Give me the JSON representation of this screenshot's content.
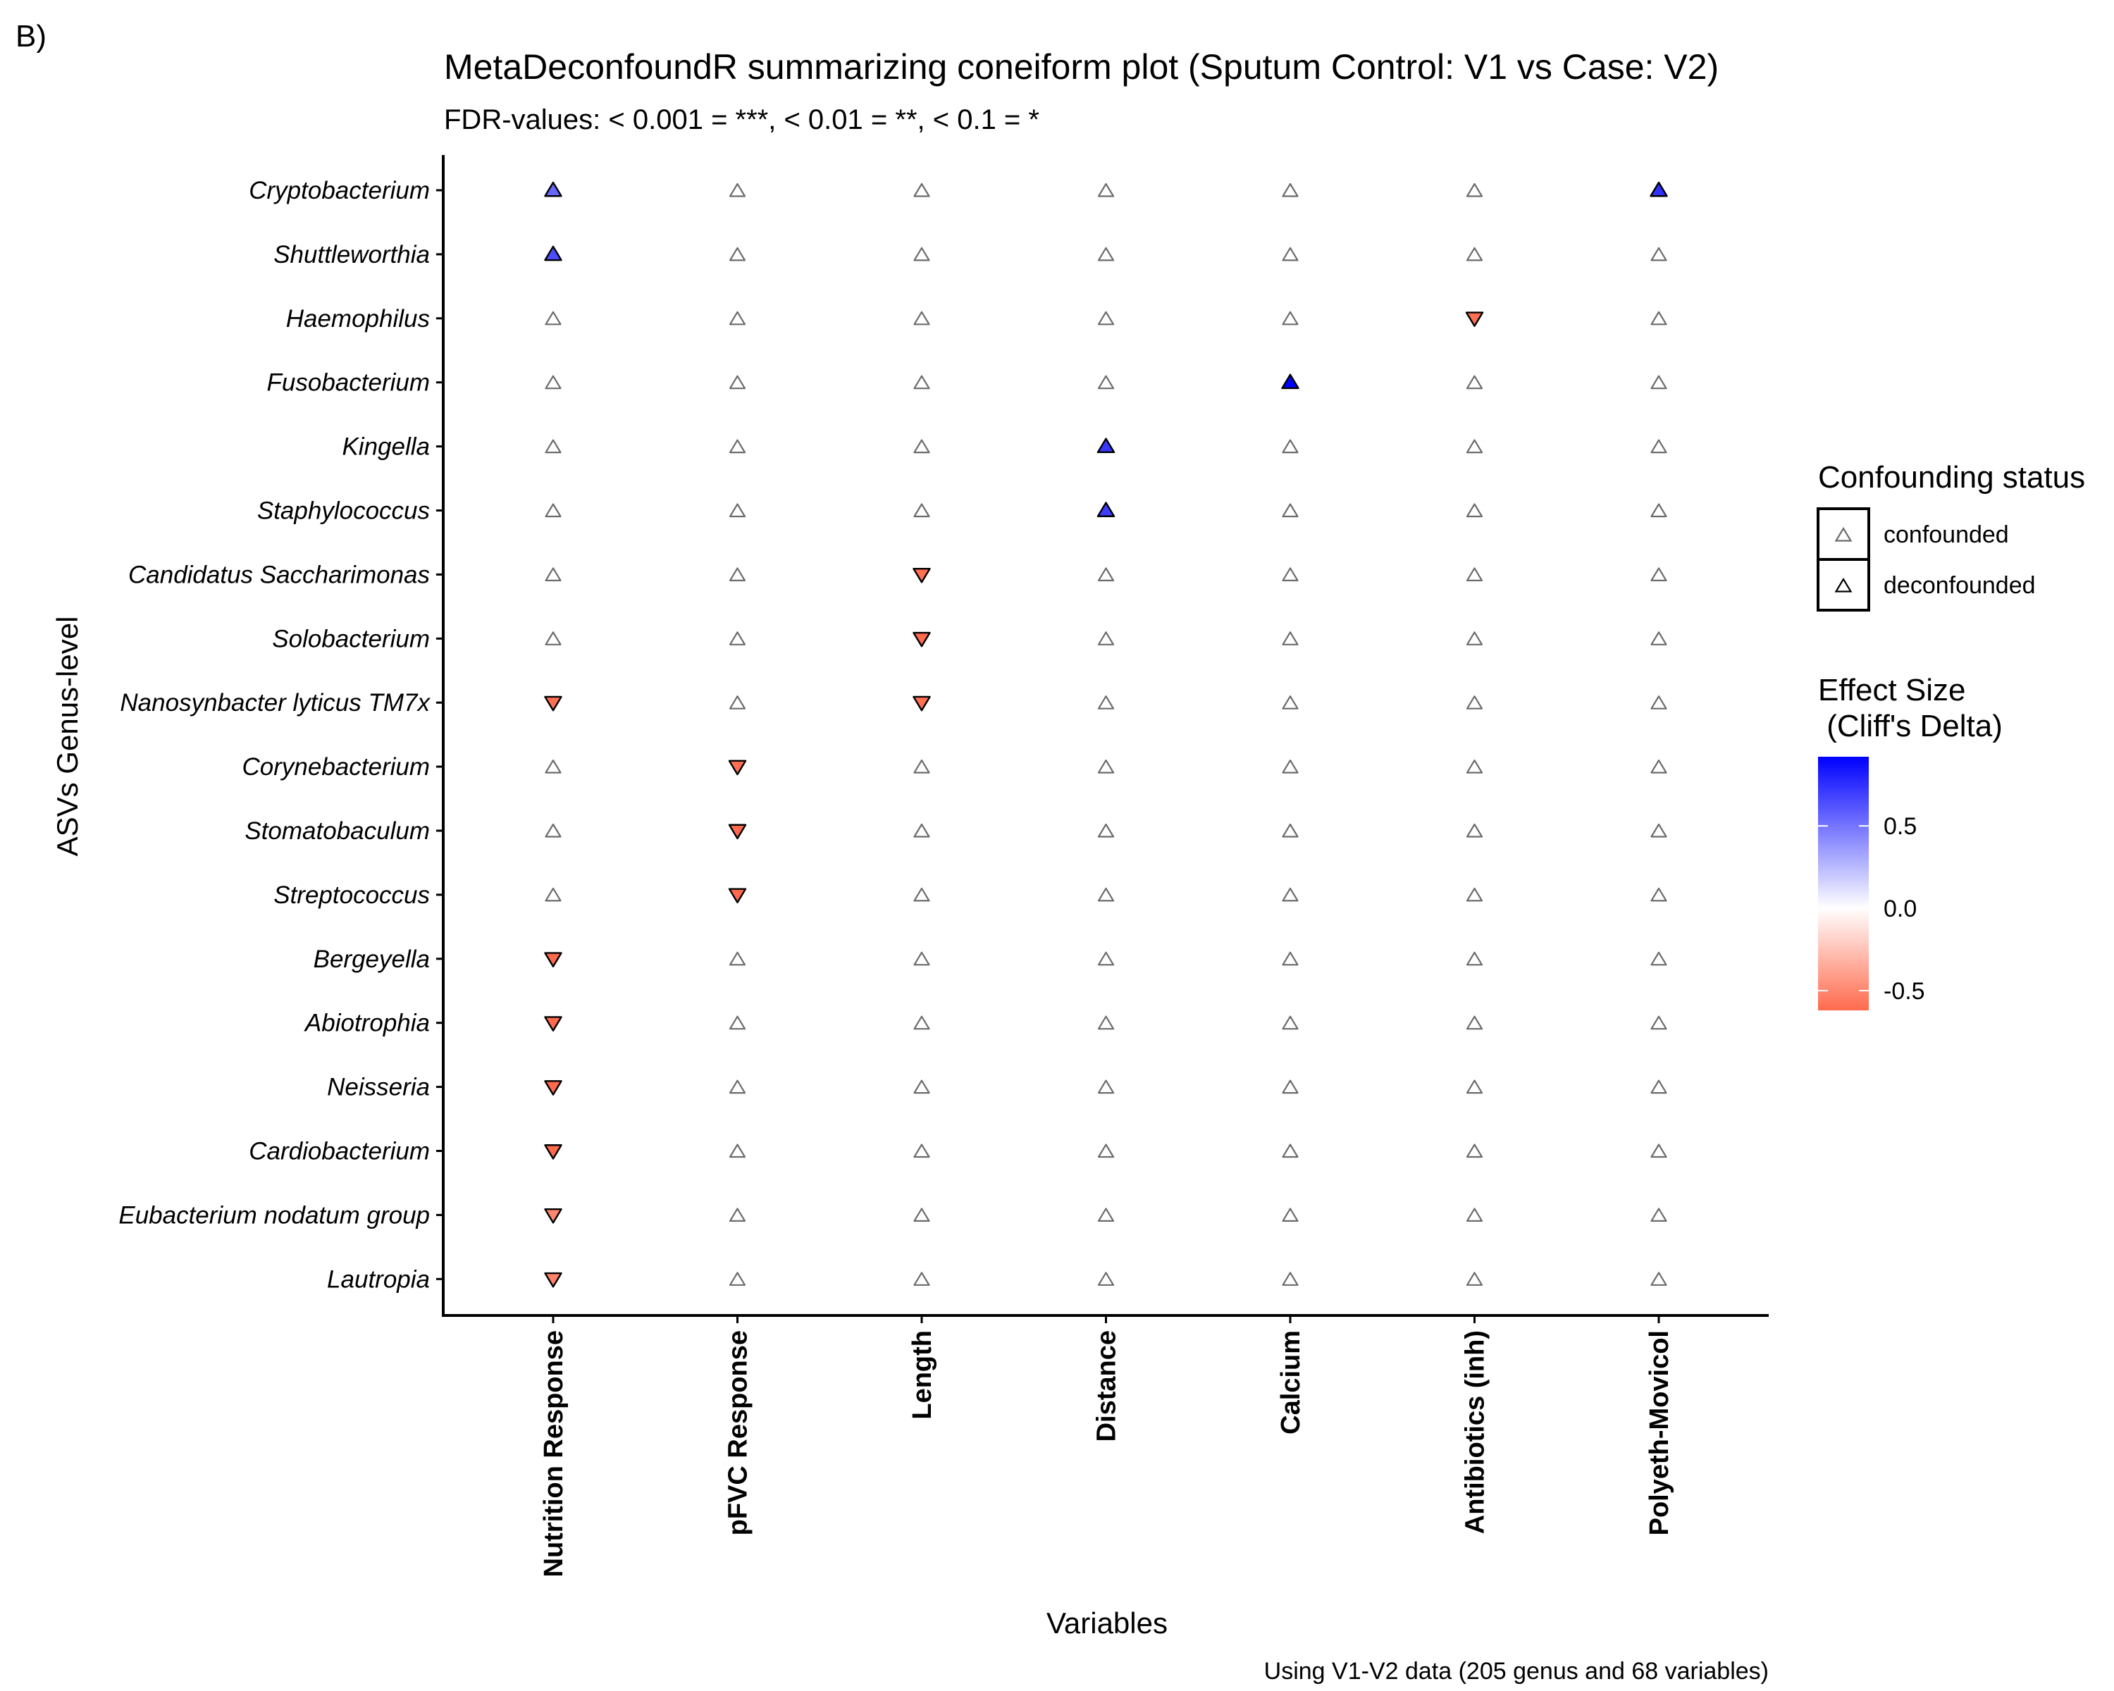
{
  "panel_label": "B)",
  "chart_data": {
    "type": "scatter",
    "title": "MetaDeconfoundR summarizing coneiform plot (Sputum Control: V1 vs Case: V2)",
    "subtitle": "FDR-values: < 0.001 = ***, < 0.01 = **, < 0.1 = *",
    "xlabel": "Variables",
    "ylabel": "ASVs Genus-level",
    "caption": "Using V1-V2 data (205 genus and 68 variables)",
    "grid": false,
    "x_categories": [
      "Nutrition Response",
      "pFVC Response",
      "Length",
      "Distance",
      "Calcium",
      "Antibiotics (inh)",
      "Polyeth-Movicol"
    ],
    "y_categories": [
      "Cryptobacterium",
      "Shuttleworthia",
      "Haemophilus",
      "Fusobacterium",
      "Kingella",
      "Staphylococcus",
      "Candidatus Saccharimonas",
      "Solobacterium",
      "Nanosynbacter lyticus TM7x",
      "Corynebacterium",
      "Stomatobaculum",
      "Streptococcus",
      "Bergeyella",
      "Abiotrophia",
      "Neisseria",
      "Cardiobacterium",
      "Eubacterium nodatum group",
      "Lautropia"
    ],
    "points": [
      {
        "genus": "Cryptobacterium",
        "variable": "Nutrition Response",
        "effect": 0.55,
        "status": "deconfounded"
      },
      {
        "genus": "Cryptobacterium",
        "variable": "Polyeth-Movicol",
        "effect": 0.75,
        "status": "deconfounded"
      },
      {
        "genus": "Shuttleworthia",
        "variable": "Nutrition Response",
        "effect": 0.65,
        "status": "deconfounded"
      },
      {
        "genus": "Haemophilus",
        "variable": "Antibiotics (inh)",
        "effect": -0.6,
        "status": "deconfounded"
      },
      {
        "genus": "Fusobacterium",
        "variable": "Calcium",
        "effect": 0.92,
        "status": "deconfounded"
      },
      {
        "genus": "Kingella",
        "variable": "Distance",
        "effect": 0.72,
        "status": "deconfounded"
      },
      {
        "genus": "Staphylococcus",
        "variable": "Distance",
        "effect": 0.7,
        "status": "deconfounded"
      },
      {
        "genus": "Candidatus Saccharimonas",
        "variable": "Length",
        "effect": -0.6,
        "status": "deconfounded"
      },
      {
        "genus": "Solobacterium",
        "variable": "Length",
        "effect": -0.62,
        "status": "deconfounded"
      },
      {
        "genus": "Nanosynbacter lyticus TM7x",
        "variable": "Nutrition Response",
        "effect": -0.6,
        "status": "deconfounded"
      },
      {
        "genus": "Nanosynbacter lyticus TM7x",
        "variable": "Length",
        "effect": -0.6,
        "status": "deconfounded"
      },
      {
        "genus": "Corynebacterium",
        "variable": "pFVC Response",
        "effect": -0.6,
        "status": "deconfounded"
      },
      {
        "genus": "Stomatobaculum",
        "variable": "pFVC Response",
        "effect": -0.62,
        "status": "deconfounded"
      },
      {
        "genus": "Streptococcus",
        "variable": "pFVC Response",
        "effect": -0.62,
        "status": "deconfounded"
      },
      {
        "genus": "Bergeyella",
        "variable": "Nutrition Response",
        "effect": -0.62,
        "status": "deconfounded"
      },
      {
        "genus": "Abiotrophia",
        "variable": "Nutrition Response",
        "effect": -0.62,
        "status": "deconfounded"
      },
      {
        "genus": "Neisseria",
        "variable": "Nutrition Response",
        "effect": -0.62,
        "status": "deconfounded"
      },
      {
        "genus": "Cardiobacterium",
        "variable": "Nutrition Response",
        "effect": -0.62,
        "status": "deconfounded"
      },
      {
        "genus": "Eubacterium nodatum group",
        "variable": "Nutrition Response",
        "effect": -0.5,
        "status": "deconfounded"
      },
      {
        "genus": "Lautropia",
        "variable": "Nutrition Response",
        "effect": -0.52,
        "status": "deconfounded"
      }
    ],
    "default_status": "confounded",
    "legend": {
      "placement": "right",
      "shape_title": "Confounding status",
      "shape_entries": [
        "confounded",
        "deconfounded"
      ],
      "color_title_line1": "Effect Size",
      "color_title_line2": " (Cliff's Delta)",
      "color_range": [
        -0.62,
        0.92
      ],
      "color_ticks": [
        {
          "value": 0.5,
          "label": "0.5"
        },
        {
          "value": 0.0,
          "label": "0.0"
        },
        {
          "value": -0.5,
          "label": "-0.5"
        }
      ],
      "colors": {
        "low": "#FF6A4D",
        "mid": "#FFFFFF",
        "high": "#0000FF"
      },
      "confounded_color": "#6b6b6b"
    }
  }
}
